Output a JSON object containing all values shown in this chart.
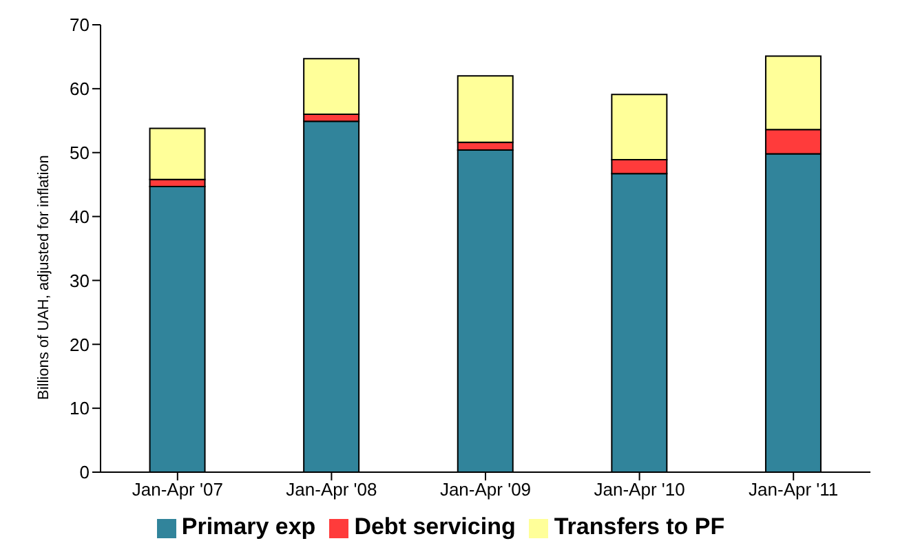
{
  "chart_data": {
    "type": "bar",
    "stacked": true,
    "ylabel": "Billions of UAH, adjusted for inflation",
    "categories": [
      "Jan-Apr '07",
      "Jan-Apr '08",
      "Jan-Apr '09",
      "Jan-Apr '10",
      "Jan-Apr '11"
    ],
    "series": [
      {
        "name": "Primary exp",
        "color": "#31849b",
        "values": [
          44.7,
          54.9,
          50.4,
          46.7,
          49.8
        ]
      },
      {
        "name": "Debt servicing",
        "color": "#ff3b3b",
        "values": [
          1.1,
          1.1,
          1.2,
          2.2,
          3.8
        ]
      },
      {
        "name": "Transfers to PF",
        "color": "#ffff99",
        "values": [
          8.0,
          8.7,
          10.4,
          10.2,
          11.5
        ]
      }
    ],
    "ylim": [
      0,
      70
    ],
    "yticks": [
      0,
      10,
      20,
      30,
      40,
      50,
      60,
      70
    ],
    "grid": false,
    "legend": "bottom"
  }
}
